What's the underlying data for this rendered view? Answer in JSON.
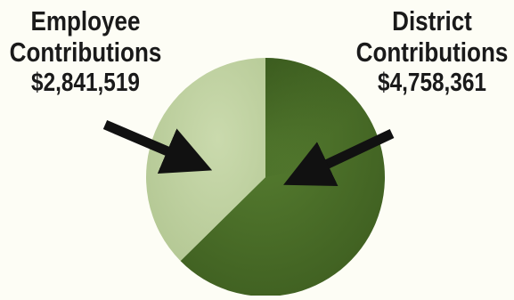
{
  "chart_data": {
    "type": "pie",
    "title": "",
    "slices": [
      {
        "label_line1": "Employee",
        "label_line2": "Contributions",
        "amount_text": "$2,841,519",
        "value": 2841519,
        "color": "#c2d3a2"
      },
      {
        "label_line1": "District",
        "label_line2": "Contributions",
        "amount_text": "$4,758,361",
        "value": 4758361,
        "color": "#4d7228"
      }
    ],
    "start_angle_deg": 0,
    "direction": "clockwise",
    "legend": "none"
  }
}
